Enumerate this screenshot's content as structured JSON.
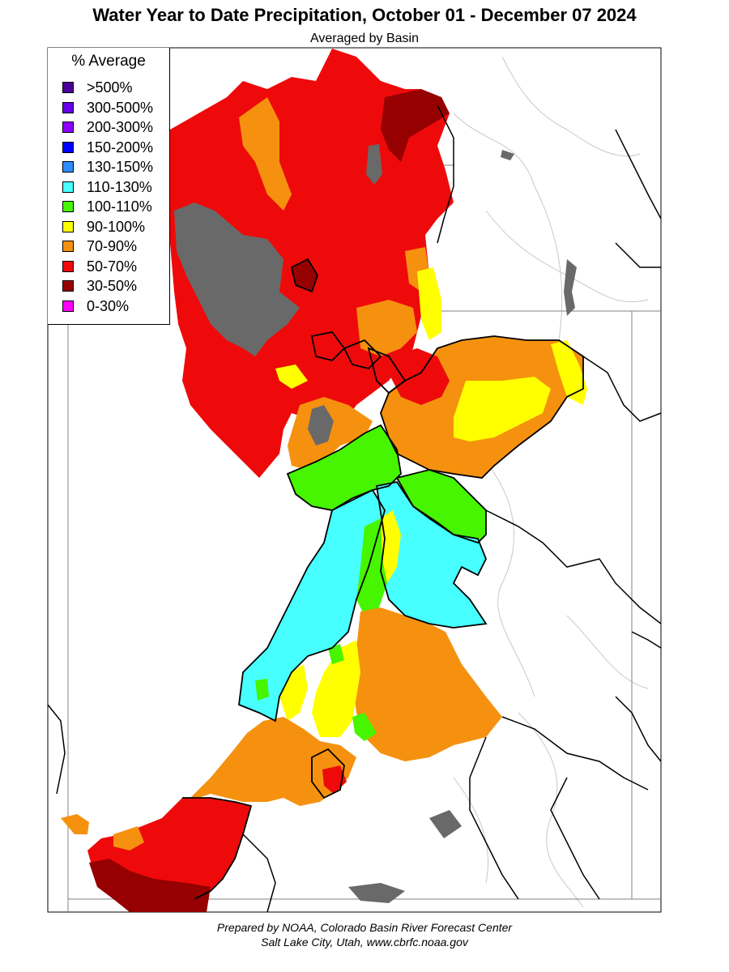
{
  "header": {
    "title": "Water Year to Date Precipitation, October 01  - December 07 2024",
    "subtitle": "Averaged by Basin"
  },
  "legend": {
    "title": "% Average",
    "items": [
      {
        "label": ">500%",
        "color": "#4b0096"
      },
      {
        "label": "300-500%",
        "color": "#6600e6"
      },
      {
        "label": "200-300%",
        "color": "#8c00ff"
      },
      {
        "label": "150-200%",
        "color": "#0000ff"
      },
      {
        "label": "130-150%",
        "color": "#2f8cff"
      },
      {
        "label": "110-130%",
        "color": "#47ffff"
      },
      {
        "label": "100-110%",
        "color": "#47f500"
      },
      {
        "label": "90-100%",
        "color": "#ffff00"
      },
      {
        "label": "70-90%",
        "color": "#f5910f"
      },
      {
        "label": "50-70%",
        "color": "#ee0a0a"
      },
      {
        "label": "30-50%",
        "color": "#960000"
      },
      {
        "label": "0-30%",
        "color": "#ff00ff"
      }
    ]
  },
  "map": {
    "no_data_color": "#696969"
  },
  "footer": {
    "line1": "Prepared by NOAA, Colorado Basin River Forecast Center",
    "line2": "Salt Lake City, Utah, www.cbrfc.noaa.gov"
  }
}
